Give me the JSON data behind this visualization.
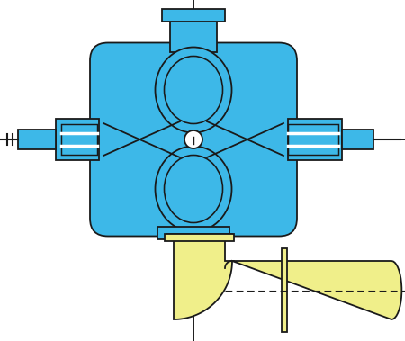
{
  "blue": "#3db8e8",
  "yellow": "#f0ef8a",
  "black": "#1a1a1a",
  "white": "#ffffff",
  "bg": "#ffffff",
  "fig_width": 4.5,
  "fig_height": 3.79,
  "dpi": 100
}
